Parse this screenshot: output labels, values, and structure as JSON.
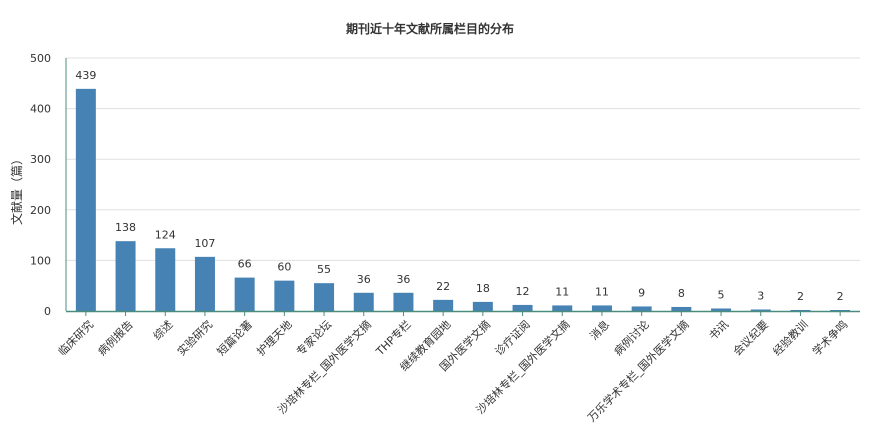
{
  "chart_data": {
    "type": "bar",
    "title": "期刊近十年文献所属栏目的分布",
    "xlabel": "",
    "ylabel": "文献量（篇）",
    "ylim": [
      0,
      500
    ],
    "yticks": [
      0,
      100,
      200,
      300,
      400,
      500
    ],
    "grid": true,
    "bar_color": "#4682B4",
    "categories": [
      "临床研究",
      "病例报告",
      "综述",
      "实验研究",
      "短篇论著",
      "护理天地",
      "专家论坛",
      "沙培林专栏_国外医学文摘",
      "THP专栏",
      "继续教育园地",
      "国外医学文摘",
      "诊疗证阅",
      "沙培林专栏_国外医学文摘",
      "消息",
      "病例讨论",
      "万乐学术专栏_国外医学文摘",
      "书讯",
      "会议纪要",
      "经验教训",
      "学术争鸣"
    ],
    "values": [
      439,
      138,
      124,
      107,
      66,
      60,
      55,
      36,
      36,
      22,
      18,
      12,
      11,
      11,
      9,
      8,
      5,
      3,
      2,
      2
    ]
  }
}
